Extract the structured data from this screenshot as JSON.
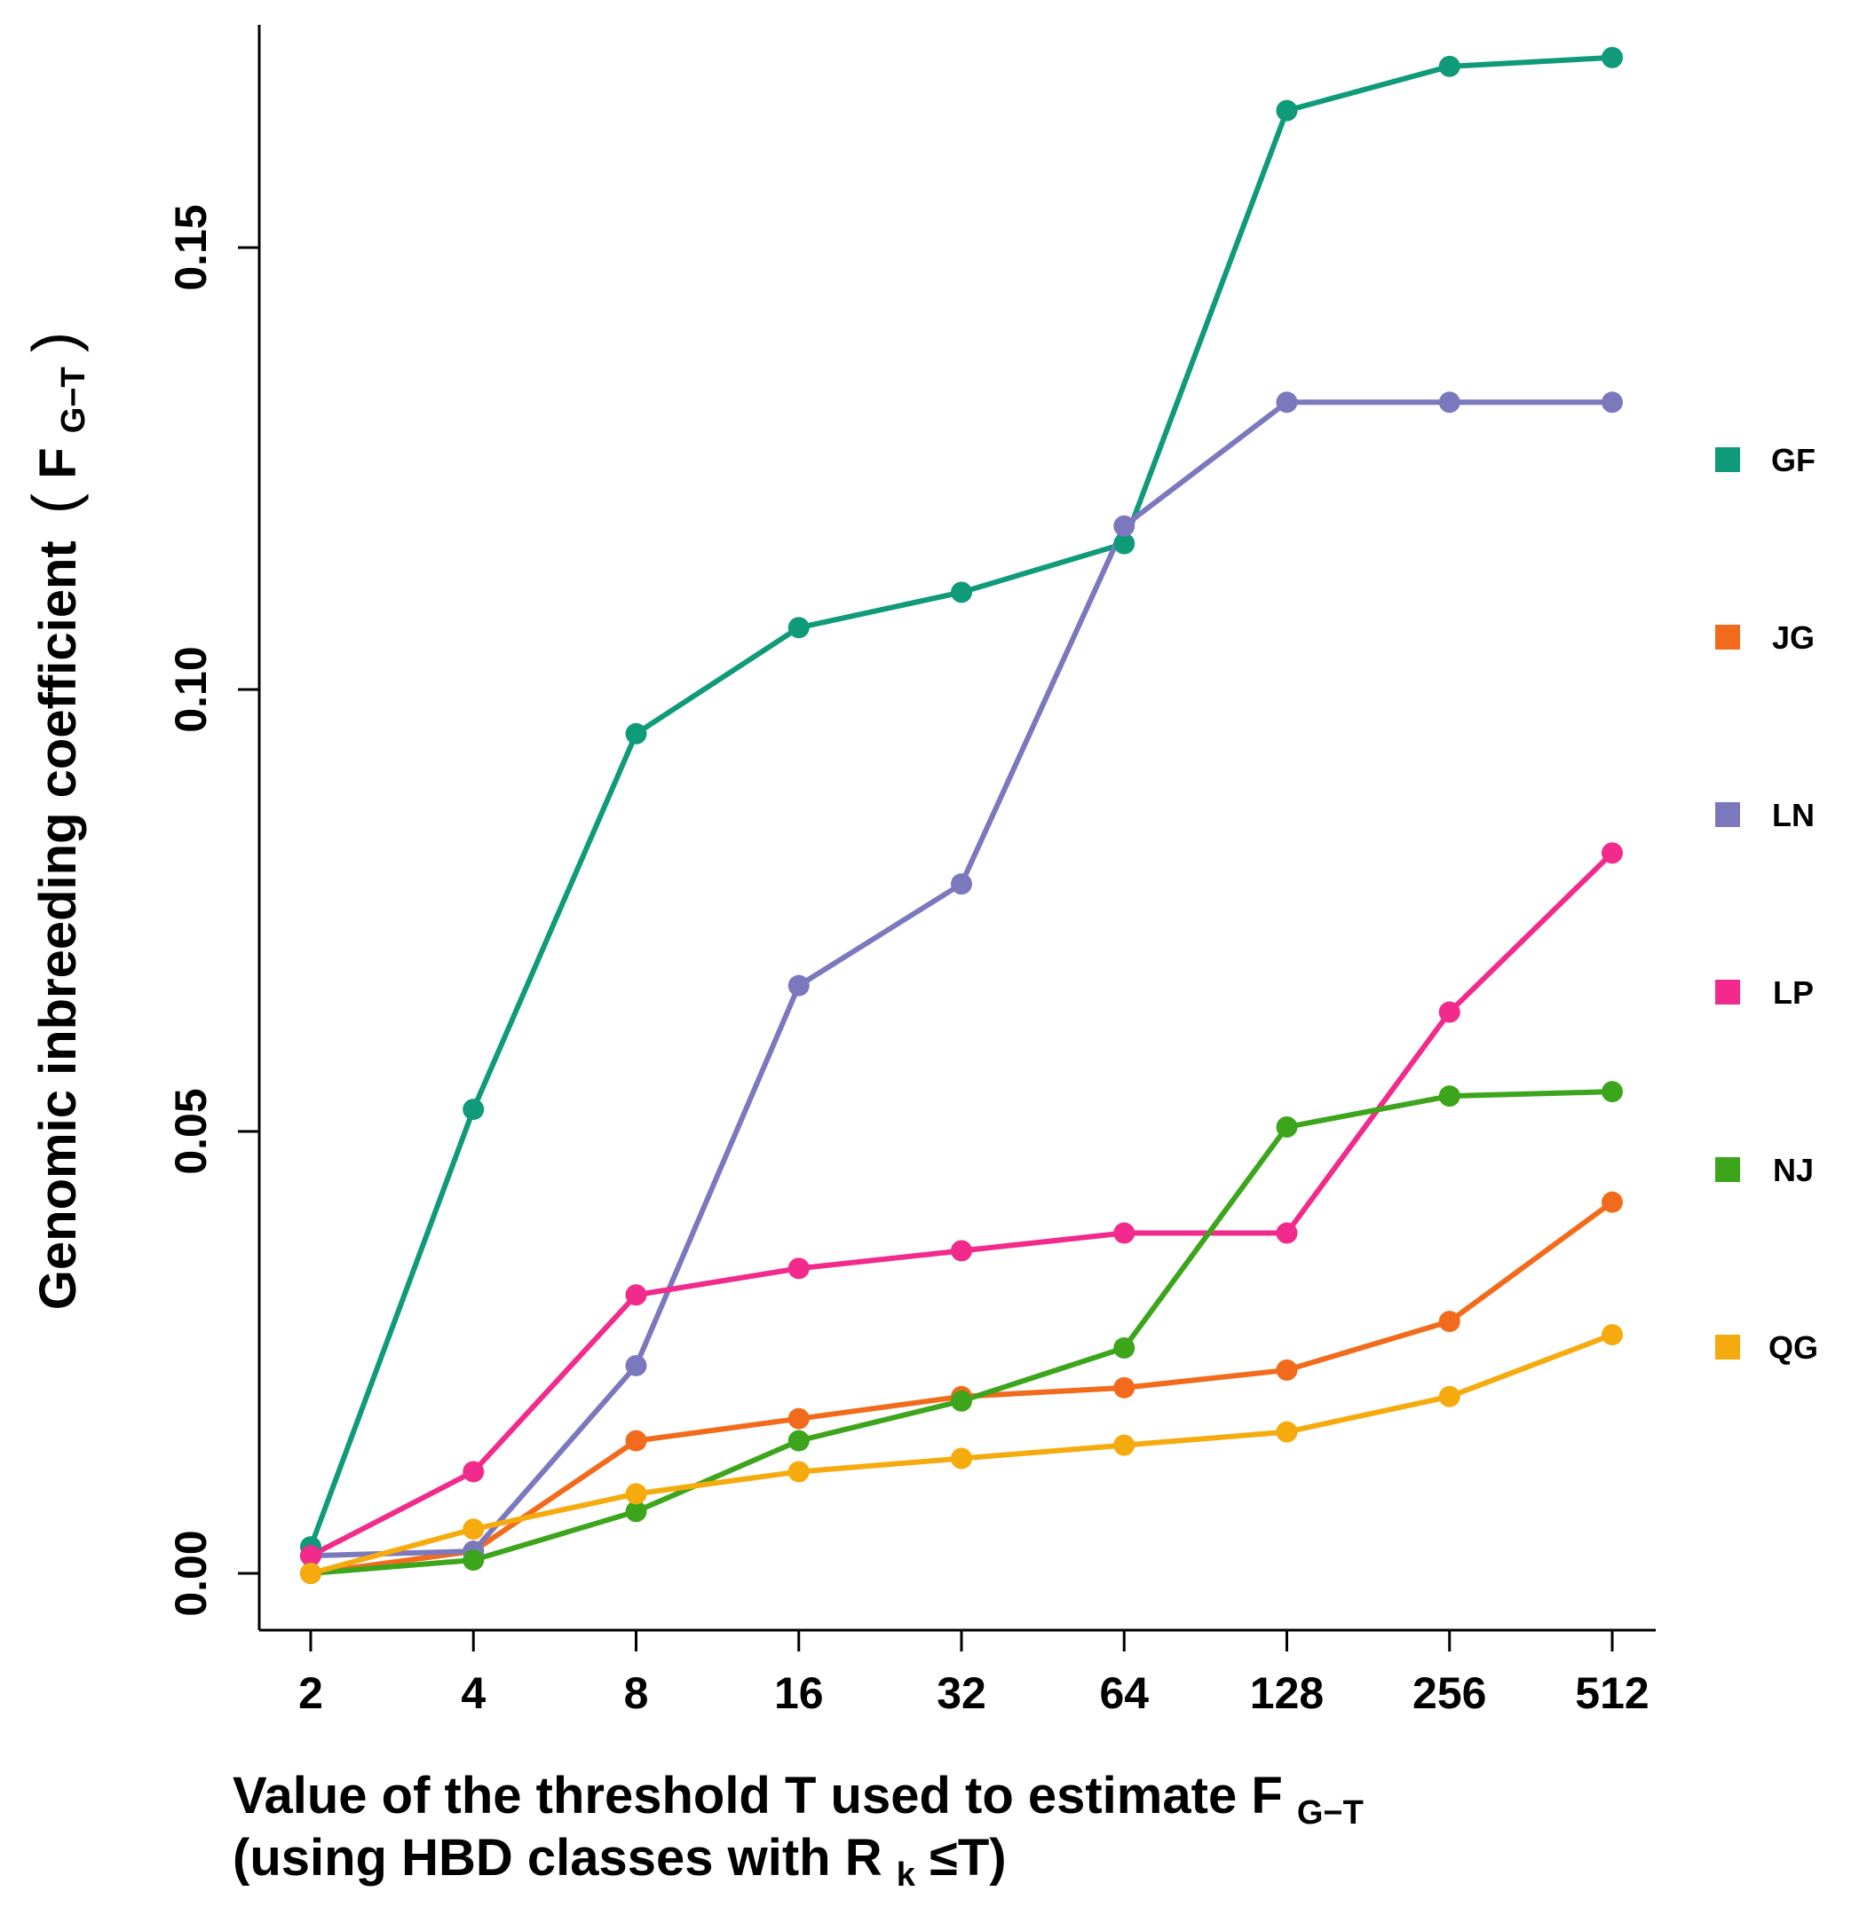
{
  "chart_data": {
    "type": "line",
    "title": "",
    "xlabel": {
      "line1_main": "Value of the threshold T used to estimate F",
      "line1_sub": "G−T",
      "line2_pre": "(using HBD classes with R",
      "line2_sub": "k",
      "line2_post": "≤T)"
    },
    "ylabel": {
      "main": "Genomic inbreeding coefficient",
      "open": "(",
      "symbol": "F",
      "sub": "G−T",
      "close": ")"
    },
    "categories": [
      "2",
      "4",
      "8",
      "16",
      "32",
      "64",
      "128",
      "256",
      "512"
    ],
    "ylim": [
      -0.007,
      0.175
    ],
    "yticks": [
      {
        "value": 0.0,
        "label": "0.00"
      },
      {
        "value": 0.05,
        "label": "0.05"
      },
      {
        "value": 0.1,
        "label": "0.10"
      },
      {
        "value": 0.15,
        "label": "0.15"
      }
    ],
    "legend_position": "right",
    "grid": false,
    "series": [
      {
        "name": "GF",
        "color": "#0f9a7a",
        "values": [
          0.003,
          0.0525,
          0.095,
          0.107,
          0.111,
          0.1165,
          0.1655,
          0.1705,
          0.1715
        ]
      },
      {
        "name": "JG",
        "color": "#f26b1d",
        "values": [
          0.0,
          0.0025,
          0.015,
          0.0175,
          0.02,
          0.021,
          0.023,
          0.0285,
          0.042
        ]
      },
      {
        "name": "LN",
        "color": "#7b78bd",
        "values": [
          0.002,
          0.0025,
          0.0235,
          0.0665,
          0.078,
          0.1185,
          0.1325,
          0.1325,
          0.1325
        ]
      },
      {
        "name": "LP",
        "color": "#f12a8c",
        "values": [
          0.002,
          0.0115,
          0.0315,
          0.0345,
          0.0365,
          0.0385,
          0.0385,
          0.0635,
          0.0815
        ]
      },
      {
        "name": "NJ",
        "color": "#3da51b",
        "values": [
          0.0,
          0.0015,
          0.007,
          0.015,
          0.0195,
          0.0255,
          0.0505,
          0.054,
          0.0545
        ]
      },
      {
        "name": "QG",
        "color": "#f5ab0d",
        "values": [
          0.0,
          0.005,
          0.009,
          0.0115,
          0.013,
          0.0145,
          0.016,
          0.02,
          0.027
        ]
      }
    ]
  }
}
